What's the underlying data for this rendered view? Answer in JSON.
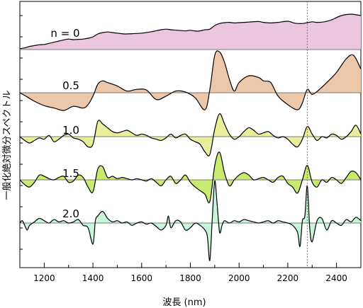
{
  "chart_data": {
    "type": "area",
    "xlabel": "波長 (nm)",
    "ylabel": "一般化絶対微分スペクトル",
    "xlim": [
      1100,
      2500
    ],
    "x_ticks": [
      1200,
      1400,
      1600,
      1800,
      2000,
      2200,
      2400
    ],
    "y_ticks_shown": false,
    "reference_line_x": 2280,
    "series": [
      {
        "name": "n = 0",
        "color": "#EBC6DF",
        "x": [
          1100,
          1120,
          1140,
          1160,
          1180,
          1200,
          1220,
          1240,
          1260,
          1280,
          1300,
          1320,
          1340,
          1360,
          1380,
          1400,
          1420,
          1440,
          1460,
          1480,
          1500,
          1530,
          1560,
          1600,
          1640,
          1680,
          1700,
          1720,
          1750,
          1780,
          1800,
          1830,
          1860,
          1880,
          1900,
          1920,
          1940,
          1960,
          1980,
          2000,
          2040,
          2080,
          2100,
          2130,
          2160,
          2200,
          2230,
          2260,
          2280,
          2300,
          2320,
          2350,
          2380,
          2420,
          2460,
          2500
        ],
        "y": [
          0.03,
          0.06,
          0.11,
          0.14,
          0.17,
          0.18,
          0.22,
          0.26,
          0.3,
          0.34,
          0.37,
          0.35,
          0.36,
          0.37,
          0.4,
          0.45,
          0.55,
          0.6,
          0.62,
          0.6,
          0.58,
          0.55,
          0.56,
          0.58,
          0.63,
          0.7,
          0.72,
          0.7,
          0.68,
          0.66,
          0.68,
          0.65,
          0.7,
          0.72,
          0.85,
          0.92,
          0.95,
          0.96,
          0.94,
          0.95,
          0.97,
          0.99,
          0.96,
          0.94,
          0.96,
          1.0,
          0.93,
          0.92,
          0.95,
          0.98,
          0.96,
          0.98,
          1.05,
          1.2,
          1.25,
          1.2
        ]
      },
      {
        "name": "0.5",
        "color": "#EDC7A9",
        "x": [
          1100,
          1130,
          1160,
          1200,
          1240,
          1280,
          1320,
          1360,
          1380,
          1400,
          1420,
          1440,
          1460,
          1500,
          1540,
          1580,
          1620,
          1660,
          1700,
          1740,
          1780,
          1820,
          1860,
          1880,
          1900,
          1920,
          1940,
          1960,
          1980,
          2000,
          2040,
          2080,
          2100,
          2130,
          2160,
          2200,
          2240,
          2260,
          2280,
          2300,
          2330,
          2360,
          2400,
          2440,
          2470,
          2500
        ],
        "y": [
          0.0,
          -0.12,
          -0.25,
          -0.38,
          -0.45,
          -0.52,
          -0.4,
          -0.45,
          -0.35,
          -0.1,
          0.25,
          0.35,
          0.3,
          0.2,
          0.05,
          0.1,
          0.08,
          -0.2,
          -0.1,
          0.05,
          0.02,
          -0.15,
          -0.5,
          0.1,
          1.1,
          1.2,
          0.9,
          0.4,
          0.05,
          0.3,
          0.5,
          0.45,
          0.35,
          0.3,
          -0.1,
          -0.35,
          -0.5,
          -0.3,
          0.1,
          -0.05,
          0.1,
          0.3,
          0.6,
          1.0,
          1.1,
          0.7
        ]
      },
      {
        "name": "1.0",
        "color": "#E8EE9A",
        "x": [
          1100,
          1120,
          1140,
          1160,
          1180,
          1200,
          1220,
          1240,
          1260,
          1280,
          1300,
          1320,
          1340,
          1360,
          1380,
          1400,
          1420,
          1440,
          1460,
          1480,
          1500,
          1520,
          1540,
          1560,
          1580,
          1600,
          1620,
          1640,
          1660,
          1680,
          1700,
          1720,
          1740,
          1760,
          1780,
          1800,
          1820,
          1840,
          1860,
          1880,
          1900,
          1920,
          1940,
          1960,
          1980,
          2000,
          2020,
          2040,
          2060,
          2080,
          2100,
          2120,
          2140,
          2160,
          2180,
          2200,
          2220,
          2240,
          2260,
          2280,
          2300,
          2320,
          2340,
          2360,
          2380,
          2400,
          2420,
          2440,
          2460,
          2480,
          2500
        ],
        "y": [
          0.0,
          -0.15,
          -0.25,
          -0.15,
          -0.05,
          -0.1,
          0.05,
          -0.2,
          -0.1,
          0.05,
          0.1,
          -0.05,
          -0.1,
          -0.2,
          -0.4,
          -0.3,
          0.6,
          0.5,
          0.35,
          0.2,
          0.15,
          0.2,
          0.25,
          0.15,
          0.05,
          0.1,
          0.05,
          -0.05,
          -0.1,
          -0.15,
          -0.05,
          0.1,
          -0.05,
          0.05,
          0.1,
          -0.1,
          -0.2,
          -0.3,
          -0.6,
          -0.7,
          0.3,
          0.9,
          0.5,
          0.1,
          -0.1,
          0.0,
          0.2,
          0.35,
          0.25,
          0.1,
          0.15,
          0.2,
          0.05,
          -0.05,
          0.0,
          -0.1,
          -0.3,
          -0.4,
          -0.1,
          0.4,
          0.1,
          -0.15,
          0.0,
          -0.05,
          0.1,
          0.05,
          -0.1,
          0.0,
          0.2,
          0.45,
          0.1
        ]
      },
      {
        "name": "1.5",
        "color": "#C8EA6F",
        "x": [
          1100,
          1120,
          1140,
          1160,
          1180,
          1200,
          1220,
          1240,
          1260,
          1280,
          1300,
          1320,
          1340,
          1360,
          1380,
          1400,
          1420,
          1440,
          1460,
          1480,
          1500,
          1520,
          1540,
          1560,
          1580,
          1600,
          1620,
          1640,
          1660,
          1680,
          1700,
          1720,
          1740,
          1760,
          1780,
          1800,
          1820,
          1840,
          1860,
          1880,
          1900,
          1920,
          1940,
          1960,
          1980,
          2000,
          2020,
          2040,
          2060,
          2080,
          2100,
          2120,
          2140,
          2160,
          2180,
          2200,
          2220,
          2240,
          2260,
          2280,
          2300,
          2320,
          2340,
          2360,
          2380,
          2400,
          2420,
          2440,
          2460,
          2480,
          2500
        ],
        "y": [
          0.0,
          -0.2,
          -0.3,
          -0.1,
          0.2,
          0.15,
          0.05,
          0.0,
          0.1,
          0.15,
          -0.1,
          -0.05,
          0.2,
          0.1,
          -0.3,
          -0.5,
          0.45,
          0.55,
          0.1,
          0.15,
          0.05,
          0.1,
          0.05,
          0.0,
          0.05,
          0.0,
          -0.05,
          0.05,
          -0.1,
          -0.25,
          0.0,
          0.15,
          -0.15,
          0.0,
          0.2,
          -0.1,
          -0.3,
          -0.45,
          -0.6,
          -0.9,
          0.6,
          1.15,
          0.3,
          -0.25,
          0.0,
          0.2,
          0.3,
          0.2,
          0.0,
          0.05,
          0.1,
          0.0,
          -0.1,
          0.1,
          0.15,
          -0.15,
          -0.3,
          -0.55,
          0.0,
          0.6,
          -0.1,
          -0.3,
          0.0,
          -0.1,
          0.1,
          0.0,
          -0.15,
          0.1,
          0.35,
          0.3,
          0.0
        ]
      },
      {
        "name": "2.0",
        "color": "#C6F5DA",
        "x": [
          1100,
          1110,
          1120,
          1130,
          1140,
          1160,
          1180,
          1200,
          1220,
          1240,
          1260,
          1280,
          1300,
          1320,
          1340,
          1360,
          1380,
          1400,
          1410,
          1420,
          1440,
          1460,
          1480,
          1500,
          1520,
          1540,
          1560,
          1580,
          1600,
          1620,
          1640,
          1660,
          1680,
          1700,
          1710,
          1720,
          1740,
          1760,
          1780,
          1800,
          1820,
          1840,
          1860,
          1870,
          1880,
          1890,
          1900,
          1910,
          1920,
          1930,
          1940,
          1960,
          1980,
          2000,
          2020,
          2040,
          2060,
          2080,
          2100,
          2120,
          2140,
          2160,
          2180,
          2200,
          2220,
          2240,
          2250,
          2260,
          2270,
          2280,
          2290,
          2300,
          2320,
          2340,
          2360,
          2380,
          2400,
          2420,
          2440,
          2460,
          2480,
          2500
        ],
        "y": [
          0.0,
          0.1,
          -0.1,
          -0.3,
          -0.1,
          0.05,
          0.2,
          0.1,
          0.0,
          0.15,
          0.05,
          0.1,
          0.0,
          0.05,
          0.15,
          -0.1,
          -0.2,
          -0.9,
          0.1,
          0.3,
          0.5,
          0.2,
          0.05,
          0.1,
          0.0,
          0.05,
          -0.1,
          0.0,
          0.05,
          -0.05,
          0.0,
          -0.15,
          -0.3,
          -0.1,
          0.3,
          -0.2,
          0.1,
          0.05,
          -0.3,
          -0.2,
          0.0,
          -0.1,
          -0.3,
          -0.6,
          -1.6,
          0.2,
          1.8,
          0.8,
          -0.4,
          -0.1,
          0.1,
          0.0,
          0.1,
          0.05,
          0.15,
          0.1,
          0.05,
          0.0,
          0.05,
          0.1,
          0.0,
          0.1,
          0.05,
          0.0,
          -0.1,
          -0.4,
          -1.0,
          0.1,
          0.3,
          1.6,
          -0.2,
          -0.8,
          0.1,
          0.2,
          -0.3,
          0.1,
          0.0,
          -0.1,
          0.15,
          0.05,
          0.25,
          0.1
        ]
      }
    ]
  }
}
